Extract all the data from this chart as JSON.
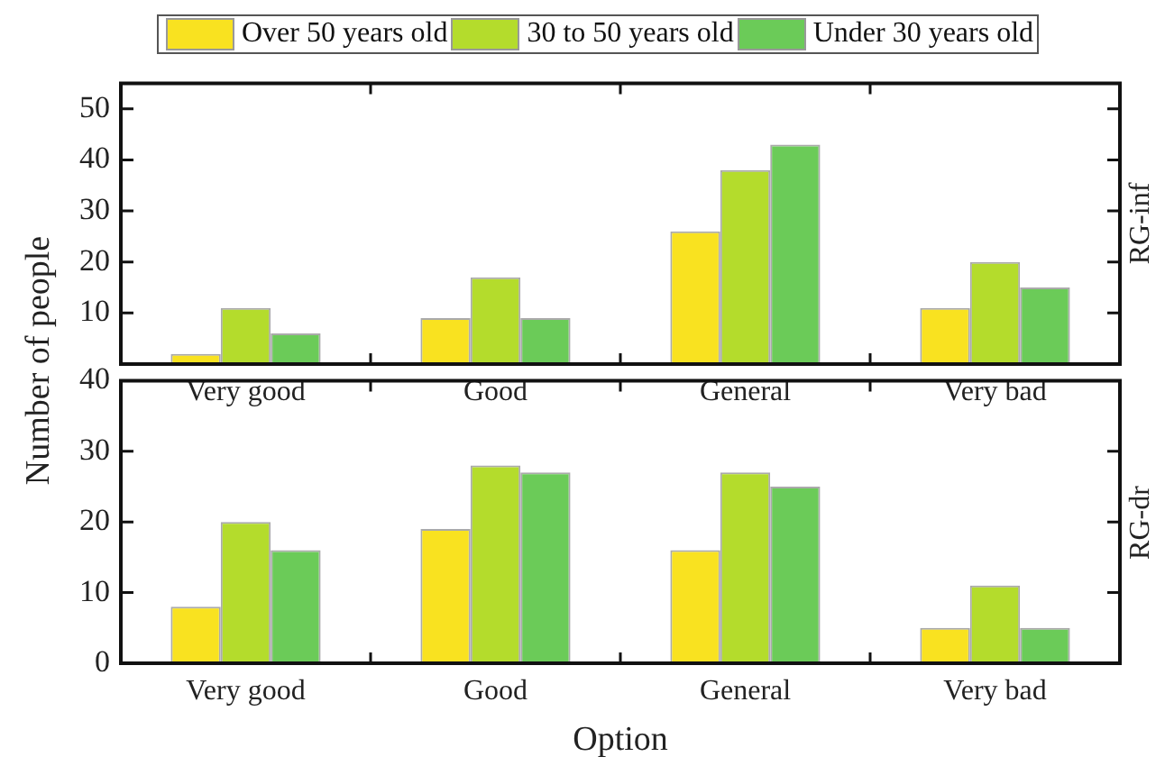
{
  "chart_data": [
    {
      "type": "bar",
      "title": "RG-inf",
      "ylabel": "Number of people",
      "legend": "top",
      "grid": false,
      "categories": [
        "Very good",
        "Good",
        "General",
        "Very bad"
      ],
      "ylim": [
        0,
        55
      ],
      "yticks": [
        {
          "value": 0,
          "label": null
        },
        10,
        20,
        30,
        40,
        50
      ],
      "series": [
        {
          "name": "Over 50 years old",
          "color": "#f9e220",
          "values": [
            2,
            9,
            26,
            11
          ]
        },
        {
          "name": "30 to 50 years old",
          "color": "#b4dc2c",
          "values": [
            11,
            17,
            38,
            20
          ]
        },
        {
          "name": "Under 30 years old",
          "color": "#6bcb58",
          "values": [
            6,
            9,
            43,
            15
          ]
        }
      ]
    },
    {
      "type": "bar",
      "title": "RG-dr",
      "xlabel": "Option",
      "grid": false,
      "categories": [
        "Very good",
        "Good",
        "General",
        "Very bad"
      ],
      "ylim": [
        0,
        40
      ],
      "yticks": [
        0,
        10,
        20,
        30,
        40
      ],
      "series": [
        {
          "color": "#f9e220",
          "values": [
            8,
            19,
            16,
            5
          ]
        },
        {
          "color": "#b4dc2c",
          "values": [
            20,
            28,
            27,
            11
          ]
        },
        {
          "color": "#6bcb58",
          "values": [
            16,
            27,
            25,
            5
          ]
        }
      ]
    }
  ]
}
